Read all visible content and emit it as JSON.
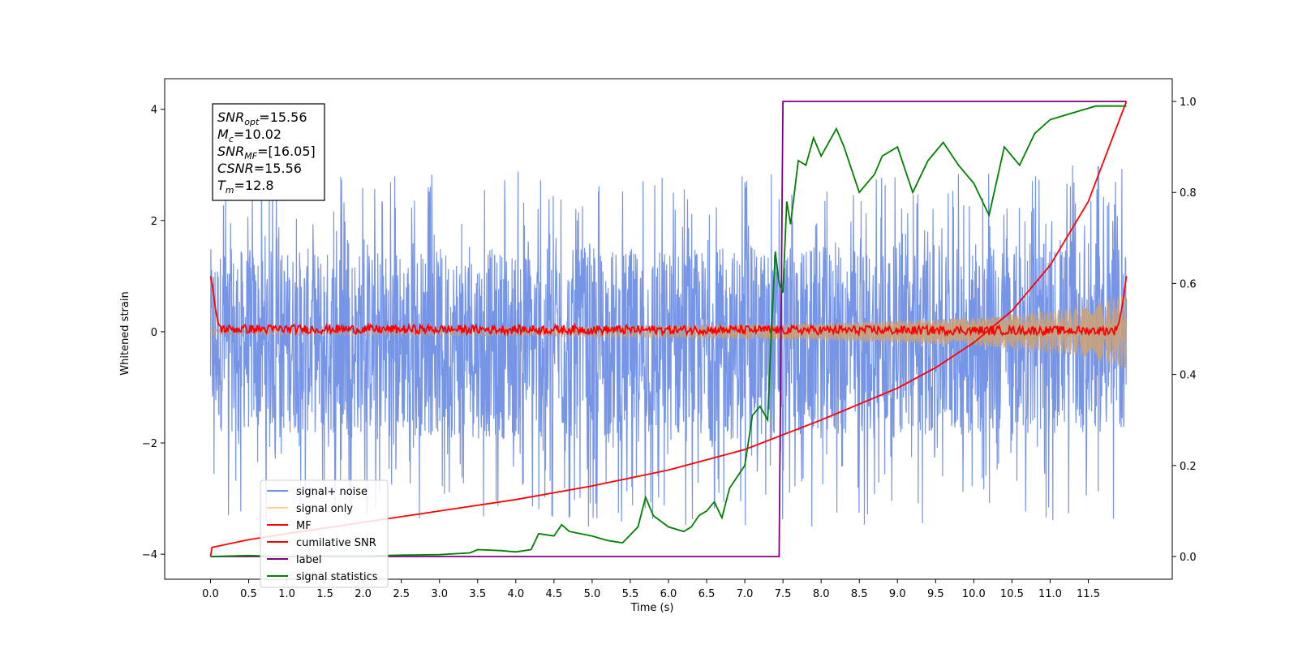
{
  "chart_data": {
    "type": "line",
    "xlabel": "Time (s)",
    "ylabel": "Whitened strain",
    "xlim": [
      -0.6,
      12.6
    ],
    "ylim": [
      -4.45,
      4.55
    ],
    "y2lim": [
      -0.05,
      1.05
    ],
    "xticks": [
      "0.0",
      "0.5",
      "1.0",
      "1.5",
      "2.0",
      "2.5",
      "3.0",
      "3.5",
      "4.0",
      "4.5",
      "5.0",
      "5.5",
      "6.0",
      "6.5",
      "7.0",
      "7.5",
      "8.0",
      "8.5",
      "9.0",
      "9.5",
      "10.0",
      "10.5",
      "11.0",
      "11.5"
    ],
    "yticks": [
      {
        "value": 4,
        "label": "4"
      },
      {
        "value": 2,
        "label": "2"
      },
      {
        "value": 0,
        "label": "0"
      },
      {
        "value": -2,
        "label": "−2"
      },
      {
        "value": -4,
        "label": "−4"
      }
    ],
    "y2ticks": [
      {
        "value": 1.0,
        "label": "1.0"
      },
      {
        "value": 0.8,
        "label": "0.8"
      },
      {
        "value": 0.6,
        "label": "0.6"
      },
      {
        "value": 0.4,
        "label": "0.4"
      },
      {
        "value": 0.2,
        "label": "0.2"
      },
      {
        "value": 0.0,
        "label": "0.0"
      }
    ],
    "annotation": [
      {
        "main": "SNR",
        "sub": "opt",
        "value": "=15.56"
      },
      {
        "main": "M",
        "sub": "c",
        "value": "=10.02"
      },
      {
        "main": "SNR",
        "sub": "MF",
        "value": "=[16.05]"
      },
      {
        "main": "CSNR",
        "sub": "",
        "value": "=15.56"
      },
      {
        "main": "T",
        "sub": "m",
        "value": "=12.8"
      }
    ],
    "legend_position": "lower-left",
    "series": [
      {
        "name": "signal+ noise",
        "color": "#6f8fe6",
        "axis": "left",
        "style": "noise",
        "t_start": 0.0,
        "t_end": 12.0,
        "envelope_low": [
          [
            0.0,
            -1.8
          ],
          [
            6.0,
            -2.0
          ],
          [
            12.0,
            -1.8
          ]
        ],
        "envelope_high": [
          [
            0.0,
            1.5
          ],
          [
            6.0,
            1.5
          ],
          [
            12.0,
            1.6
          ]
        ]
      },
      {
        "name": "signal only",
        "color": "#f5c36a",
        "axis": "left",
        "style": "chirp",
        "t_start": 0.0,
        "t_end": 12.0,
        "amplitude": [
          [
            0.0,
            0.05
          ],
          [
            4.0,
            0.07
          ],
          [
            8.0,
            0.15
          ],
          [
            10.0,
            0.25
          ],
          [
            11.5,
            0.45
          ],
          [
            12.0,
            0.68
          ]
        ]
      },
      {
        "name": "MF",
        "color": "#ff0000",
        "axis": "left",
        "style": "mf",
        "points": [
          [
            0.0,
            1.0
          ],
          [
            0.03,
            0.8
          ],
          [
            0.06,
            0.45
          ],
          [
            0.1,
            0.15
          ],
          [
            0.15,
            0.05
          ],
          [
            11.85,
            0.02
          ],
          [
            11.9,
            0.15
          ],
          [
            11.95,
            0.5
          ],
          [
            12.0,
            1.0
          ]
        ]
      },
      {
        "name": "cumilative SNR",
        "color": "#ff0000",
        "axis": "right",
        "points": [
          [
            0.0,
            0.0
          ],
          [
            0.02,
            0.02
          ],
          [
            0.5,
            0.037
          ],
          [
            1.0,
            0.05
          ],
          [
            2.0,
            0.075
          ],
          [
            3.0,
            0.1
          ],
          [
            4.0,
            0.125
          ],
          [
            5.0,
            0.155
          ],
          [
            6.0,
            0.19
          ],
          [
            7.0,
            0.235
          ],
          [
            8.0,
            0.3
          ],
          [
            9.0,
            0.37
          ],
          [
            9.5,
            0.415
          ],
          [
            10.0,
            0.47
          ],
          [
            10.5,
            0.54
          ],
          [
            11.0,
            0.64
          ],
          [
            11.5,
            0.78
          ],
          [
            12.0,
            1.0
          ]
        ]
      },
      {
        "name": "label",
        "color": "#800080",
        "axis": "right",
        "points": [
          [
            0.0,
            0.0
          ],
          [
            7.45,
            0.0
          ],
          [
            7.5,
            1.0
          ],
          [
            12.0,
            1.0
          ]
        ]
      },
      {
        "name": "signal statistics",
        "color": "#008000",
        "axis": "right",
        "points": [
          [
            0.0,
            0.0
          ],
          [
            0.5,
            0.002
          ],
          [
            1.0,
            0.0
          ],
          [
            1.5,
            0.001
          ],
          [
            2.0,
            0.001
          ],
          [
            2.5,
            0.003
          ],
          [
            3.0,
            0.004
          ],
          [
            3.4,
            0.008
          ],
          [
            3.5,
            0.015
          ],
          [
            3.8,
            0.013
          ],
          [
            4.0,
            0.01
          ],
          [
            4.2,
            0.015
          ],
          [
            4.3,
            0.05
          ],
          [
            4.5,
            0.045
          ],
          [
            4.6,
            0.07
          ],
          [
            4.7,
            0.055
          ],
          [
            5.0,
            0.045
          ],
          [
            5.2,
            0.035
          ],
          [
            5.4,
            0.03
          ],
          [
            5.6,
            0.065
          ],
          [
            5.7,
            0.13
          ],
          [
            5.8,
            0.09
          ],
          [
            6.0,
            0.065
          ],
          [
            6.2,
            0.055
          ],
          [
            6.3,
            0.065
          ],
          [
            6.4,
            0.09
          ],
          [
            6.5,
            0.1
          ],
          [
            6.6,
            0.12
          ],
          [
            6.7,
            0.085
          ],
          [
            6.8,
            0.15
          ],
          [
            7.0,
            0.2
          ],
          [
            7.1,
            0.31
          ],
          [
            7.2,
            0.33
          ],
          [
            7.3,
            0.3
          ],
          [
            7.35,
            0.5
          ],
          [
            7.4,
            0.67
          ],
          [
            7.45,
            0.6
          ],
          [
            7.5,
            0.58
          ],
          [
            7.55,
            0.78
          ],
          [
            7.6,
            0.73
          ],
          [
            7.7,
            0.87
          ],
          [
            7.8,
            0.86
          ],
          [
            7.9,
            0.92
          ],
          [
            8.0,
            0.88
          ],
          [
            8.2,
            0.94
          ],
          [
            8.3,
            0.9
          ],
          [
            8.5,
            0.8
          ],
          [
            8.7,
            0.84
          ],
          [
            8.8,
            0.88
          ],
          [
            9.0,
            0.9
          ],
          [
            9.2,
            0.8
          ],
          [
            9.4,
            0.87
          ],
          [
            9.6,
            0.91
          ],
          [
            9.8,
            0.86
          ],
          [
            10.0,
            0.82
          ],
          [
            10.2,
            0.75
          ],
          [
            10.4,
            0.9
          ],
          [
            10.6,
            0.86
          ],
          [
            10.8,
            0.93
          ],
          [
            11.0,
            0.96
          ],
          [
            11.2,
            0.97
          ],
          [
            11.4,
            0.98
          ],
          [
            11.6,
            0.99
          ],
          [
            11.8,
            0.99
          ],
          [
            12.0,
            0.99
          ]
        ]
      }
    ]
  }
}
